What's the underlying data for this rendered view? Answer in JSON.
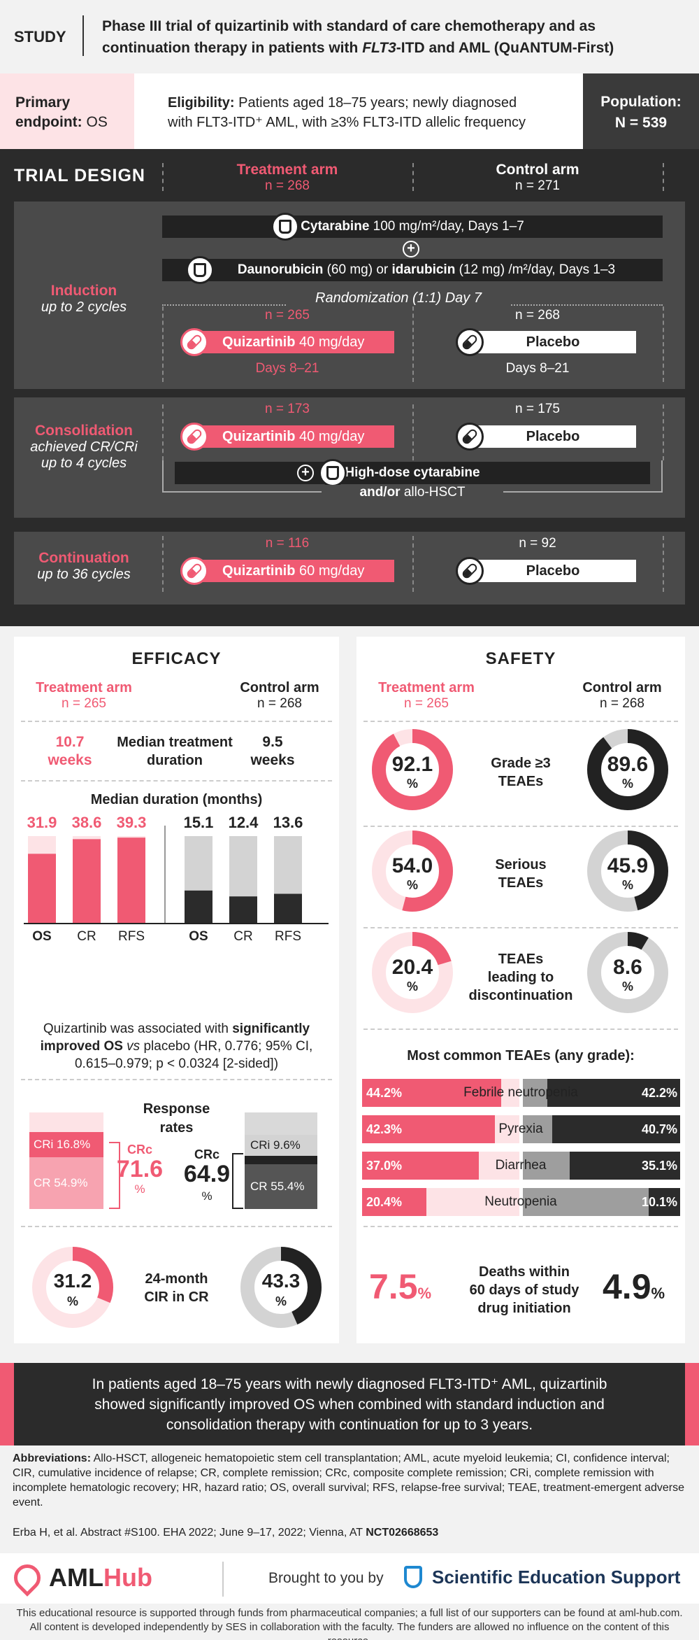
{
  "header": {
    "study_label": "STUDY",
    "title_line1": "Phase III trial of quizartinib with standard of care chemotherapy and as",
    "title_line2_a": "continuation therapy in patients with ",
    "title_line2_i": "FLT3",
    "title_line2_b": "-ITD and AML (QuANTUM-First)"
  },
  "info": {
    "primary_label": "Primary",
    "endpoint_label": "endpoint:",
    "endpoint_value": "OS",
    "eligibility_label": "Eligibility:",
    "eligibility_text1": "Patients aged 18–75 years; newly diagnosed",
    "eligibility_text2": "with FLT3-ITD⁺ AML, with ≥3% FLT3-ITD allelic frequency",
    "population_label": "Population:",
    "population_value": "N = 539"
  },
  "design": {
    "title": "TRIAL DESIGN",
    "treatment_arm": "Treatment arm",
    "treatment_n": "n = 268",
    "control_arm": "Control arm",
    "control_n": "n = 271",
    "induction": {
      "label": "Induction",
      "sub": "up to 2 cycles",
      "cytarabine": "Cytarabine",
      "cytarabine_dose": "100 mg/m²/day, Days 1–7",
      "dauno": "Daunorubicin",
      "dauno_dose": "(60 mg) or",
      "ida": "idarubicin",
      "ida_dose": "(12 mg) /m²/day, Days 1–3",
      "randomization": "Randomization (1:1) Day 7",
      "t_n": "n = 265",
      "c_n": "n = 268",
      "quiz": "Quizartinib",
      "quiz_dose": "40 mg/day",
      "placebo": "Placebo",
      "t_days": "Days 8–21",
      "c_days": "Days 8–21"
    },
    "consolidation": {
      "label": "Consolidation",
      "sub1": "achieved CR/CRi",
      "sub2": "up to 4 cycles",
      "t_n": "n = 173",
      "c_n": "n = 175",
      "quiz": "Quizartinib",
      "quiz_dose": "40 mg/day",
      "placebo": "Placebo",
      "hdac": "High-dose cytarabine",
      "andor": "and/or",
      "hsct": "allo-HSCT"
    },
    "continuation": {
      "label": "Continuation",
      "sub": "up to 36 cycles",
      "t_n": "n = 116",
      "c_n": "n = 92",
      "quiz": "Quizartinib",
      "quiz_dose": "60 mg/day",
      "placebo": "Placebo"
    }
  },
  "efficacy": {
    "title": "EFFICACY",
    "treatment_arm": "Treatment arm",
    "treatment_n": "n = 265",
    "control_arm": "Control arm",
    "control_n": "n = 268",
    "t_duration": "10.7",
    "t_duration_unit": "weeks",
    "duration_label1": "Median treatment",
    "duration_label2": "duration",
    "c_duration": "9.5",
    "c_duration_unit": "weeks",
    "median_title": "Median duration (months)",
    "note_a": "Quizartinib was associated with ",
    "note_b": "significantly",
    "note_c": "improved OS",
    "note_d": " vs ",
    "note_e": "placebo (HR, 0.776; 95% CI,",
    "note_f": "0.615–0.979; p < 0.0324 [2-sided])",
    "response_title1": "Response",
    "response_title2": "rates",
    "t_cri": "CRi 16.8%",
    "t_cr": "CR 54.9%",
    "t_crc_label": "CRc",
    "t_crc_value": "71.6",
    "c_cri": "CRi 9.6%",
    "c_cr": "CR 55.4%",
    "c_crc_label": "CRc",
    "c_crc_value": "64.9",
    "pct": "%",
    "cir_t": "31.2",
    "cir_c": "43.3",
    "cir_label1": "24-month",
    "cir_label2": "CIR in CR"
  },
  "chart_data": {
    "type": "bar",
    "title": "Median duration (months)",
    "categories": [
      "OS",
      "CR",
      "RFS"
    ],
    "ylim": [
      0,
      40
    ],
    "series": [
      {
        "name": "Treatment arm",
        "values": [
          31.9,
          38.6,
          39.3
        ],
        "color": "#f05a73"
      },
      {
        "name": "Control arm",
        "values": [
          15.1,
          12.4,
          13.6
        ],
        "color": "#2b2b2b"
      }
    ]
  },
  "safety": {
    "title": "SAFETY",
    "treatment_arm": "Treatment arm",
    "treatment_n": "n = 265",
    "control_arm": "Control arm",
    "control_n": "n = 268",
    "rows": [
      {
        "label1": "Grade ≥3",
        "label2": "TEAEs",
        "label3": "",
        "t": 92.1,
        "c": 89.6
      },
      {
        "label1": "Serious",
        "label2": "TEAEs",
        "label3": "",
        "t": 54.0,
        "c": 45.9
      },
      {
        "label1": "TEAEs",
        "label2": "leading to",
        "label3": "discontinuation",
        "t": 20.4,
        "c": 8.6
      }
    ],
    "t_labels": [
      "92.1",
      "54.0",
      "20.4"
    ],
    "c_labels": [
      "89.6",
      "45.9",
      "8.6"
    ],
    "common_title": "Most common TEAEs (any grade):",
    "common": [
      {
        "name": "Febrile neutropenia",
        "t": "44.2%",
        "c": "42.2%",
        "tv": 44.2,
        "cv": 42.2
      },
      {
        "name": "Pyrexia",
        "t": "42.3%",
        "c": "40.7%",
        "tv": 42.3,
        "cv": 40.7
      },
      {
        "name": "Diarrhea",
        "t": "37.0%",
        "c": "35.1%",
        "tv": 37.0,
        "cv": 35.1
      },
      {
        "name": "Neutropenia",
        "t": "20.4%",
        "c": "10.1%",
        "tv": 20.4,
        "cv": 10.1
      }
    ],
    "deaths_t": "7.5",
    "deaths_c": "4.9",
    "deaths_label1": "Deaths within",
    "deaths_label2": "60 days of study",
    "deaths_label3": "drug initiation"
  },
  "conclusion": {
    "line1": "In patients aged 18–75 years with newly diagnosed FLT3-ITD⁺ AML, quizartinib",
    "line2": "showed significantly improved OS when combined with standard induction and",
    "line3": "consolidation therapy with continuation for up to 3 years."
  },
  "abbreviations": {
    "label": "Abbreviations:",
    "text": "Allo-HSCT, allogeneic hematopoietic stem cell transplantation; AML, acute myeloid leukemia; CI, confidence interval; CIR, cumulative incidence of relapse; CR, complete remission; CRc, composite complete remission; CRi, complete remission with incomplete hematologic recovery; HR, hazard ratio; OS, overall survival; RFS, relapse-free survival; TEAE, treatment-emergent adverse event."
  },
  "reference": {
    "text": "Erba H, et al. Abstract #S100. EHA 2022; June 9–17, 2022; Vienna, AT",
    "nct": "NCT02668653"
  },
  "logos": {
    "aml": "AML",
    "hub": "Hub",
    "brought": "Brought to you by",
    "ses": "Scientific Education Support"
  },
  "footer": {
    "line1": "This educational resource is supported through funds from pharmaceutical companies; a full list of our supporters can be found at aml-hub.com.",
    "line2": "All content is developed independently by SES in collaboration with the faculty. The funders are allowed no influence on the content of this resource."
  },
  "colors": {
    "accent": "#f05a73",
    "dark": "#2b2b2b",
    "light_pink": "#fde3e6",
    "grey": "#d3d3d3"
  }
}
